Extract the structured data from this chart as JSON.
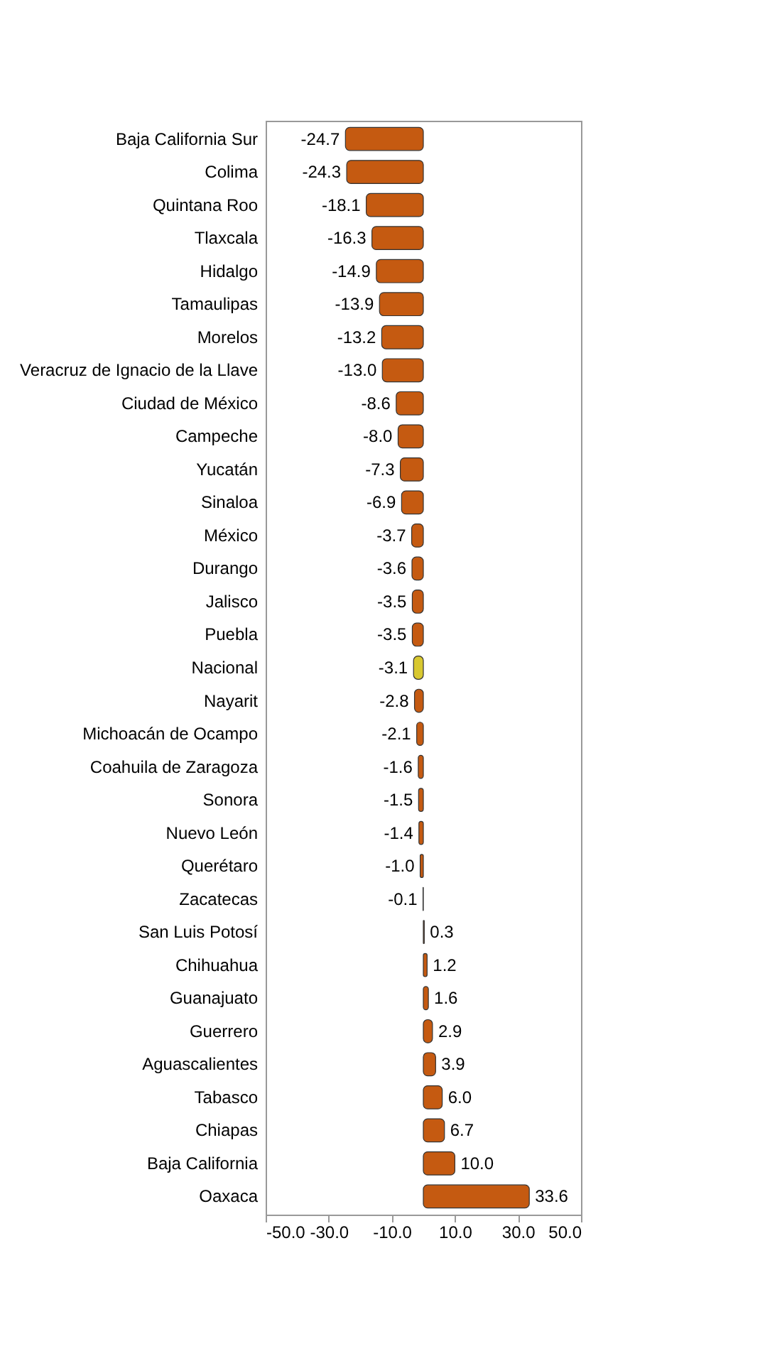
{
  "chart_data": {
    "type": "bar",
    "orientation": "horizontal",
    "categories": [
      "Baja California Sur",
      "Colima",
      "Quintana Roo",
      "Tlaxcala",
      "Hidalgo",
      "Tamaulipas",
      "Morelos",
      "Veracruz de Ignacio de la Llave",
      "Ciudad de México",
      "Campeche",
      "Yucatán",
      "Sinaloa",
      "México",
      "Durango",
      "Jalisco",
      "Puebla",
      "Nacional",
      "Nayarit",
      "Michoacán de Ocampo",
      "Coahuila de Zaragoza",
      "Sonora",
      "Nuevo León",
      "Querétaro",
      "Zacatecas",
      "San Luis Potosí",
      "Chihuahua",
      "Guanajuato",
      "Guerrero",
      "Aguascalientes",
      "Tabasco",
      "Chiapas",
      "Baja California",
      "Oaxaca"
    ],
    "values": [
      -24.7,
      -24.3,
      -18.1,
      -16.3,
      -14.9,
      -13.9,
      -13.2,
      -13.0,
      -8.6,
      -8.0,
      -7.3,
      -6.9,
      -3.7,
      -3.6,
      -3.5,
      -3.5,
      -3.1,
      -2.8,
      -2.1,
      -1.6,
      -1.5,
      -1.4,
      -1.0,
      -0.1,
      0.3,
      1.2,
      1.6,
      2.9,
      3.9,
      6.0,
      6.7,
      10.0,
      33.6
    ],
    "value_labels": [
      "-24.7",
      "-24.3",
      "-18.1",
      "-16.3",
      "-14.9",
      "-13.9",
      "-13.2",
      "-13.0",
      "-8.6",
      "-8.0",
      "-7.3",
      "-6.9",
      "-3.7",
      "-3.6",
      "-3.5",
      "-3.5",
      "-3.1",
      "-2.8",
      "-2.1",
      "-1.6",
      "-1.5",
      "-1.4",
      "-1.0",
      "-0.1",
      "0.3",
      "1.2",
      "1.6",
      "2.9",
      "3.9",
      "6.0",
      "6.7",
      "10.0",
      "33.6"
    ],
    "colors": [
      "#c55a11",
      "#c55a11",
      "#c55a11",
      "#c55a11",
      "#c55a11",
      "#c55a11",
      "#c55a11",
      "#c55a11",
      "#c55a11",
      "#c55a11",
      "#c55a11",
      "#c55a11",
      "#c55a11",
      "#c55a11",
      "#c55a11",
      "#c55a11",
      "#d8c830",
      "#c55a11",
      "#c55a11",
      "#c55a11",
      "#c55a11",
      "#c55a11",
      "#c55a11",
      "#c55a11",
      "#c55a11",
      "#c55a11",
      "#c55a11",
      "#c55a11",
      "#c55a11",
      "#c55a11",
      "#c55a11",
      "#c55a11",
      "#c55a11"
    ],
    "xlim": [
      -50,
      50
    ],
    "xticks": [
      {
        "value": -50,
        "label": "-50.0"
      },
      {
        "value": -30,
        "label": "-30.0"
      },
      {
        "value": -10,
        "label": "-10.0"
      },
      {
        "value": 10,
        "label": "10.0"
      },
      {
        "value": 30,
        "label": "30.0"
      },
      {
        "value": 50,
        "label": "50.0"
      }
    ],
    "grid": false
  }
}
